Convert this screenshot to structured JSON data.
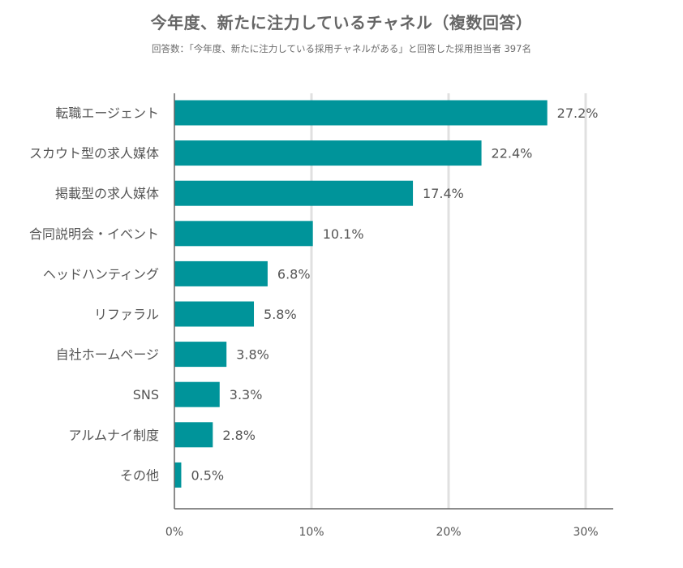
{
  "title": "今年度、新たに注力しているチャネル（複数回答）",
  "subtitle": "回答数：「今年度、新たに注力している採用チャネルがある」と回答した採用担当者 397名",
  "chart_data": {
    "type": "bar",
    "orientation": "horizontal",
    "categories": [
      "転職エージェント",
      "スカウト型の求人媒体",
      "掲載型の求人媒体",
      "合同説明会・イベント",
      "ヘッドハンティング",
      "リファラル",
      "自社ホームページ",
      "SNS",
      "アルムナイ制度",
      "その他"
    ],
    "values": [
      27.2,
      22.4,
      17.4,
      10.1,
      6.8,
      5.8,
      3.8,
      3.3,
      2.8,
      0.5
    ],
    "value_labels": [
      "27.2%",
      "22.4%",
      "17.4%",
      "10.1%",
      "6.8%",
      "5.8%",
      "3.8%",
      "3.3%",
      "2.8%",
      "0.5%"
    ],
    "xlim": [
      0,
      30
    ],
    "x_ticks": [
      0,
      10,
      20,
      30
    ],
    "x_tick_labels": [
      "0%",
      "10%",
      "20%",
      "30%"
    ],
    "grid": true,
    "bar_color": "#00949a",
    "grid_color": "#e0e0e0",
    "axis_color": "#666666"
  }
}
